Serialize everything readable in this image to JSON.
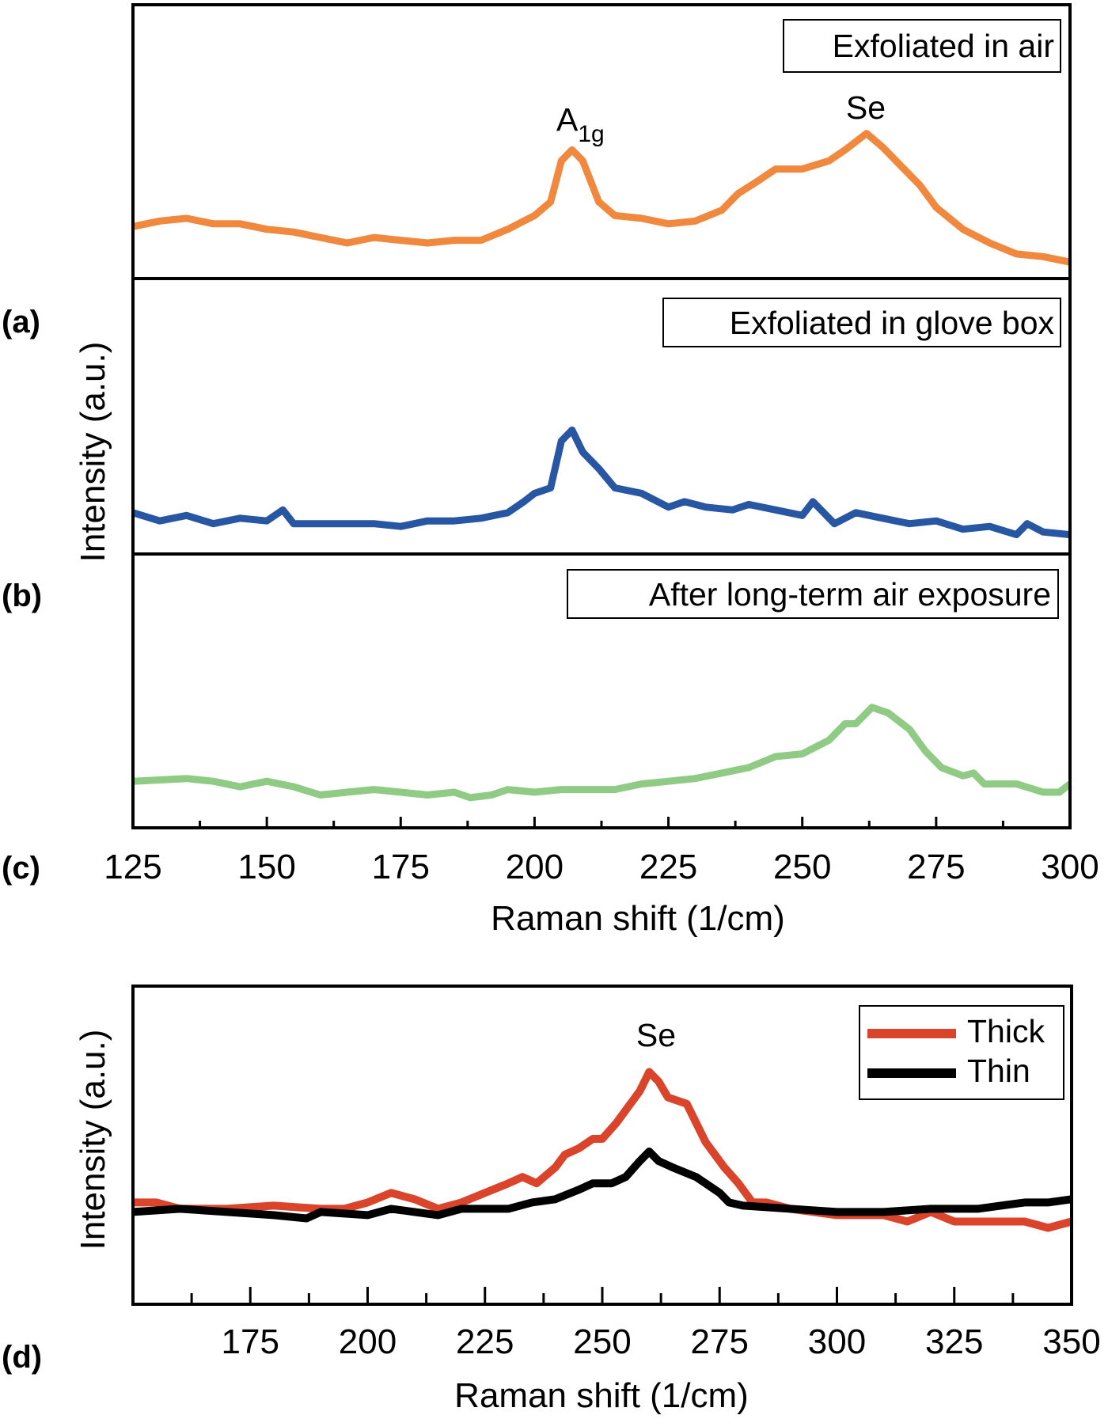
{
  "chart_data": [
    {
      "type": "line",
      "panel_label": "(a)",
      "legend_label": "Exfoliated in air",
      "xlim": [
        125,
        300
      ],
      "x_ticks": [
        "125",
        "150",
        "175",
        "200",
        "225",
        "250",
        "275",
        "300"
      ],
      "annotations": [
        {
          "text": "A",
          "subscript": "1g",
          "x": 207
        },
        {
          "text": "Se",
          "x": 262
        }
      ],
      "color": "#F0883E",
      "x": [
        125,
        130,
        135,
        140,
        145,
        150,
        155,
        160,
        165,
        170,
        175,
        180,
        185,
        190,
        195,
        198,
        200,
        203,
        205,
        207,
        209,
        212,
        215,
        220,
        225,
        230,
        235,
        238,
        242,
        245,
        250,
        255,
        258,
        262,
        265,
        268,
        272,
        275,
        280,
        285,
        290,
        295,
        300
      ],
      "y": [
        0.19,
        0.21,
        0.22,
        0.2,
        0.2,
        0.18,
        0.17,
        0.15,
        0.13,
        0.15,
        0.14,
        0.13,
        0.14,
        0.14,
        0.18,
        0.21,
        0.23,
        0.28,
        0.43,
        0.47,
        0.43,
        0.28,
        0.23,
        0.22,
        0.2,
        0.21,
        0.25,
        0.31,
        0.36,
        0.4,
        0.4,
        0.43,
        0.47,
        0.53,
        0.48,
        0.42,
        0.34,
        0.26,
        0.18,
        0.13,
        0.09,
        0.08,
        0.06
      ]
    },
    {
      "type": "line",
      "panel_label": "(b)",
      "legend_label": "Exfoliated in glove box",
      "xlim": [
        125,
        300
      ],
      "color": "#2756A3",
      "x": [
        125,
        130,
        135,
        140,
        145,
        150,
        153,
        155,
        160,
        165,
        170,
        175,
        180,
        185,
        190,
        195,
        198,
        200,
        203,
        205,
        207,
        209,
        212,
        215,
        220,
        225,
        228,
        232,
        237,
        240,
        245,
        250,
        252,
        256,
        260,
        265,
        270,
        275,
        280,
        285,
        290,
        292,
        295,
        300
      ],
      "y": [
        0.15,
        0.12,
        0.14,
        0.11,
        0.13,
        0.12,
        0.16,
        0.11,
        0.11,
        0.11,
        0.11,
        0.1,
        0.12,
        0.12,
        0.13,
        0.15,
        0.19,
        0.22,
        0.24,
        0.41,
        0.45,
        0.37,
        0.31,
        0.24,
        0.22,
        0.17,
        0.19,
        0.17,
        0.16,
        0.18,
        0.16,
        0.14,
        0.19,
        0.11,
        0.15,
        0.13,
        0.11,
        0.12,
        0.09,
        0.1,
        0.07,
        0.11,
        0.08,
        0.07
      ]
    },
    {
      "type": "line",
      "panel_label": "(c)",
      "legend_label": "After long-term air exposure",
      "xlim": [
        125,
        300
      ],
      "color": "#8FCB84",
      "x": [
        125,
        135,
        140,
        145,
        150,
        155,
        160,
        165,
        170,
        175,
        180,
        185,
        188,
        192,
        195,
        200,
        205,
        210,
        215,
        220,
        225,
        230,
        235,
        240,
        245,
        250,
        255,
        258,
        260,
        263,
        266,
        270,
        273,
        276,
        280,
        282,
        284,
        290,
        295,
        298,
        300
      ],
      "y": [
        0.17,
        0.18,
        0.17,
        0.15,
        0.17,
        0.15,
        0.12,
        0.13,
        0.14,
        0.13,
        0.12,
        0.13,
        0.11,
        0.12,
        0.14,
        0.13,
        0.14,
        0.14,
        0.14,
        0.16,
        0.17,
        0.18,
        0.2,
        0.22,
        0.26,
        0.27,
        0.32,
        0.38,
        0.38,
        0.44,
        0.42,
        0.36,
        0.28,
        0.22,
        0.19,
        0.2,
        0.16,
        0.16,
        0.13,
        0.13,
        0.16
      ]
    },
    {
      "type": "line",
      "panel_label": "(d)",
      "xlabel": "Raman shift (1/cm)",
      "ylabel": "Intensity (a.u.)",
      "xlim": [
        150,
        350
      ],
      "x_ticks": [
        "175",
        "200",
        "225",
        "250",
        "275",
        "300",
        "325",
        "350"
      ],
      "annotations": [
        {
          "text": "Se",
          "x": 260
        }
      ],
      "legend": "top-right",
      "series": [
        {
          "name": "Thick",
          "color": "#D9442B",
          "x": [
            150,
            155,
            160,
            170,
            180,
            190,
            195,
            200,
            205,
            210,
            215,
            220,
            225,
            230,
            233,
            236,
            240,
            242,
            245,
            248,
            250,
            253,
            256,
            258,
            260,
            262,
            264,
            268,
            272,
            276,
            279,
            282,
            285,
            290,
            300,
            310,
            315,
            320,
            325,
            330,
            335,
            340,
            345,
            350
          ],
          "y": [
            0.32,
            0.32,
            0.3,
            0.3,
            0.31,
            0.3,
            0.3,
            0.32,
            0.35,
            0.33,
            0.3,
            0.32,
            0.35,
            0.38,
            0.4,
            0.38,
            0.43,
            0.47,
            0.49,
            0.52,
            0.52,
            0.57,
            0.63,
            0.67,
            0.73,
            0.7,
            0.65,
            0.63,
            0.51,
            0.43,
            0.38,
            0.32,
            0.32,
            0.3,
            0.28,
            0.28,
            0.26,
            0.29,
            0.26,
            0.26,
            0.26,
            0.26,
            0.24,
            0.26
          ]
        },
        {
          "name": "Thin",
          "color": "#000000",
          "x": [
            150,
            160,
            170,
            180,
            187,
            190,
            200,
            205,
            210,
            215,
            220,
            225,
            230,
            235,
            240,
            245,
            248,
            252,
            255,
            258,
            260,
            262,
            265,
            270,
            275,
            277,
            280,
            290,
            300,
            310,
            320,
            330,
            340,
            345,
            350
          ],
          "y": [
            0.29,
            0.3,
            0.29,
            0.28,
            0.27,
            0.29,
            0.28,
            0.3,
            0.29,
            0.28,
            0.3,
            0.3,
            0.3,
            0.32,
            0.33,
            0.36,
            0.38,
            0.38,
            0.4,
            0.45,
            0.48,
            0.45,
            0.43,
            0.4,
            0.35,
            0.32,
            0.31,
            0.3,
            0.29,
            0.29,
            0.3,
            0.3,
            0.32,
            0.32,
            0.33
          ]
        }
      ]
    }
  ],
  "top_figure": {
    "xlabel": "Raman shift (1/cm)",
    "ylabel": "Intensity (a.u.)"
  }
}
